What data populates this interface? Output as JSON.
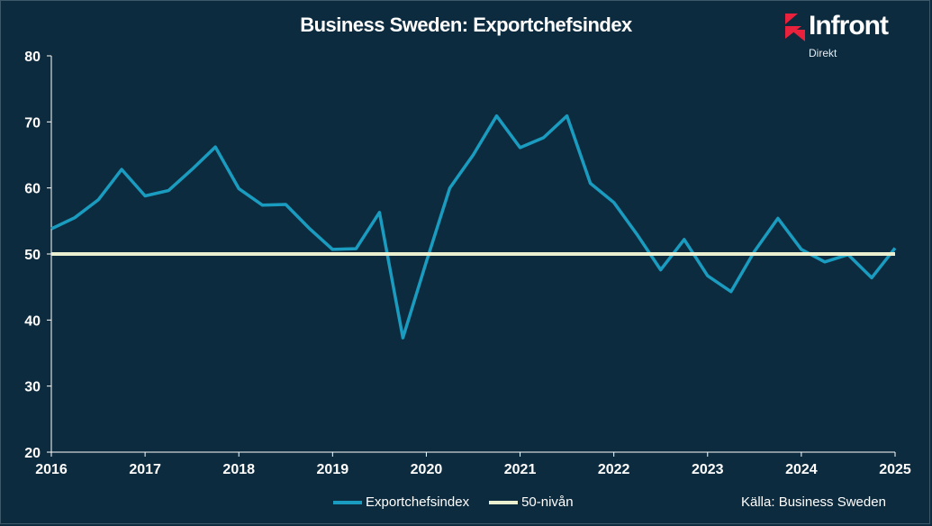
{
  "title": "Business Sweden: Exportchefsindex",
  "logo": {
    "name": "Infront",
    "sub": "Direkt"
  },
  "source": "Källa:  Business Sweden",
  "colors": {
    "background": "#0d2b3e",
    "series1": "#1a9cc0",
    "series2": "#e9efcf",
    "axis": "#ffffff"
  },
  "chart_data": {
    "type": "line",
    "ylim": [
      20,
      80
    ],
    "yticks": [
      20,
      30,
      40,
      50,
      60,
      70,
      80
    ],
    "xlim": [
      2016,
      2025
    ],
    "xticks": [
      "2016",
      "2017",
      "2018",
      "2019",
      "2020",
      "2021",
      "2022",
      "2023",
      "2024",
      "2025"
    ],
    "grid": false,
    "legend_position": "bottom",
    "series": [
      {
        "name": "Exportchefsindex",
        "color": "#1a9cc0",
        "x": [
          2016.0,
          2016.25,
          2016.5,
          2016.75,
          2017.0,
          2017.25,
          2017.5,
          2017.75,
          2018.0,
          2018.25,
          2018.5,
          2018.75,
          2019.0,
          2019.25,
          2019.5,
          2019.75,
          2020.0,
          2020.25,
          2020.5,
          2020.75,
          2021.0,
          2021.25,
          2021.5,
          2021.75,
          2022.0,
          2022.25,
          2022.5,
          2022.75,
          2023.0,
          2023.25,
          2023.5,
          2023.75,
          2024.0,
          2024.25,
          2024.5,
          2024.75,
          2025.0
        ],
        "values": [
          53.8,
          55.5,
          58.2,
          62.8,
          58.8,
          59.6,
          62.8,
          66.2,
          59.9,
          57.4,
          57.5,
          53.9,
          50.7,
          50.8,
          56.3,
          37.3,
          48.8,
          60.0,
          65.0,
          70.9,
          66.1,
          67.6,
          70.9,
          60.7,
          57.8,
          52.9,
          47.6,
          52.2,
          46.7,
          44.3,
          50.4,
          55.4,
          50.7,
          48.8,
          49.9,
          46.4,
          50.9
        ]
      },
      {
        "name": "50-nivån",
        "color": "#e9efcf",
        "x": [
          2016.0,
          2025.0
        ],
        "values": [
          50,
          50
        ]
      }
    ]
  }
}
